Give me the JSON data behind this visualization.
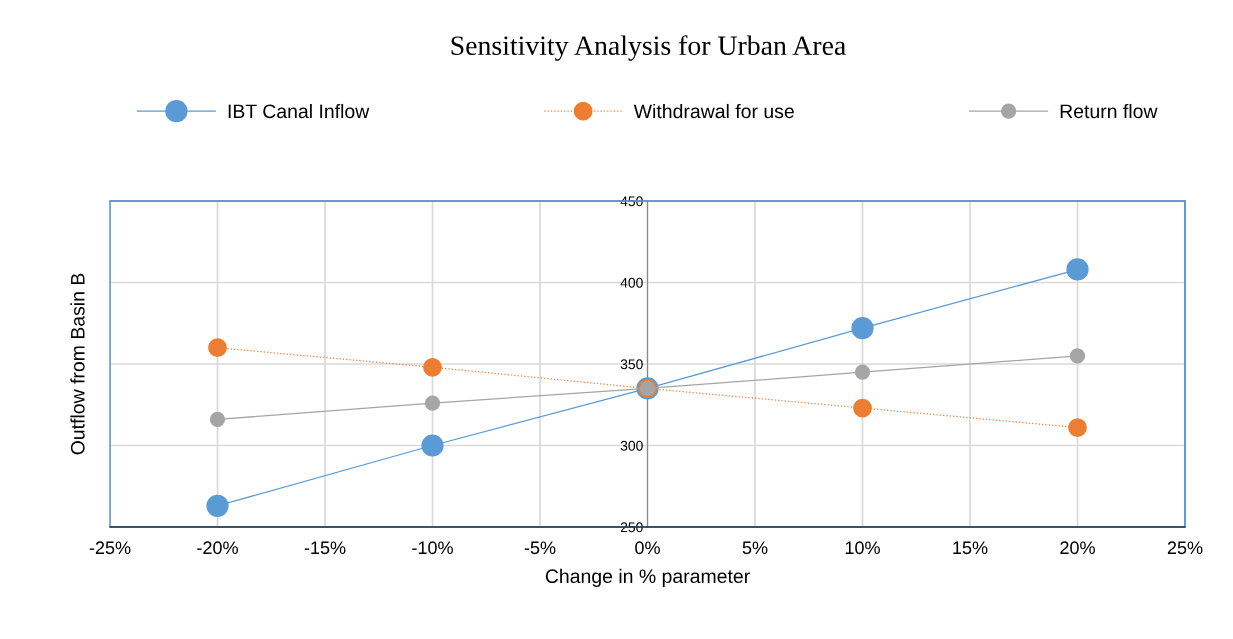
{
  "chart_data": {
    "type": "line",
    "title": "Sensitivity Analysis for Urban Area",
    "xlabel": "Change in % parameter",
    "ylabel": "Outflow from Basin B",
    "x": [
      -20,
      -10,
      0,
      10,
      20
    ],
    "series": [
      {
        "name": "IBT Canal Inflow",
        "color": "#5b9bd5",
        "line_style": "solid",
        "values": [
          263,
          300,
          335,
          372,
          408
        ]
      },
      {
        "name": "Withdrawal for use",
        "color": "#ed7d31",
        "line_style": "dotted",
        "values": [
          360,
          348,
          335,
          323,
          311
        ]
      },
      {
        "name": "Return flow",
        "color": "#a5a5a5",
        "line_style": "solid",
        "values": [
          316,
          326,
          335,
          345,
          355
        ]
      }
    ],
    "xlim": [
      -25,
      25
    ],
    "xticks": [
      {
        "value": -25,
        "label": "-25%"
      },
      {
        "value": -20,
        "label": "-20%"
      },
      {
        "value": -15,
        "label": "-15%"
      },
      {
        "value": -10,
        "label": "-10%"
      },
      {
        "value": -5,
        "label": "-5%"
      },
      {
        "value": 0,
        "label": "0%"
      },
      {
        "value": 5,
        "label": "5%"
      },
      {
        "value": 10,
        "label": "10%"
      },
      {
        "value": 15,
        "label": "15%"
      },
      {
        "value": 20,
        "label": "20%"
      },
      {
        "value": 25,
        "label": "25%"
      }
    ],
    "ylim": [
      250,
      450
    ],
    "yticks": [
      250,
      300,
      350,
      400,
      450
    ],
    "grid": true,
    "legend": "top",
    "marker": "circle"
  }
}
